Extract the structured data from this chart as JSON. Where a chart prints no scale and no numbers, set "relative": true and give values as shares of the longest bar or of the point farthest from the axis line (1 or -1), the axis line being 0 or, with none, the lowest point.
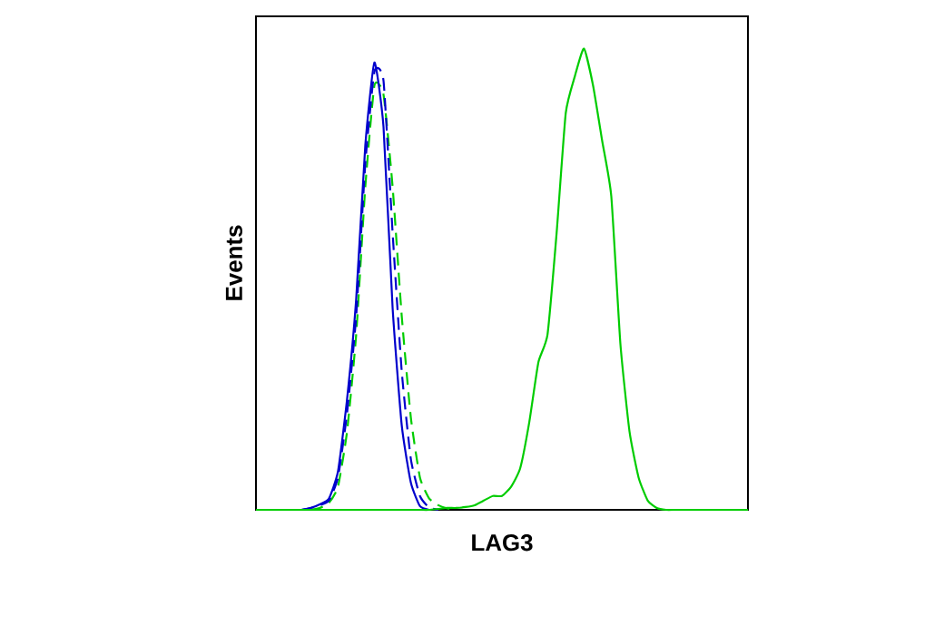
{
  "chart_data": {
    "type": "line",
    "relative": true,
    "xlabel": "LAG3",
    "ylabel": "Events",
    "marker": "none",
    "categories": [
      null,
      null,
      null,
      null,
      null,
      null,
      null,
      null,
      null,
      null,
      null,
      null,
      null,
      null,
      null,
      null,
      null,
      null,
      null,
      null,
      null,
      null,
      null,
      null,
      null,
      null,
      null,
      null,
      null,
      null,
      null,
      null,
      null,
      null,
      null,
      null,
      null,
      null,
      null,
      null,
      null,
      null,
      null,
      null,
      null,
      null,
      null,
      null,
      null,
      null,
      null,
      null,
      null,
      null,
      null
    ],
    "series": [
      {
        "color": "#00cc00",
        "line_style": "dashed",
        "values": [
          null,
          null,
          null,
          null,
          null,
          null,
          0,
          0.004,
          0.015,
          0.05,
          0.17,
          0.38,
          0.7,
          0.92,
          0.9,
          0.7,
          0.42,
          0.2,
          0.07,
          0.025,
          0.01,
          0.003,
          0,
          null,
          null,
          null,
          null,
          null,
          null,
          null,
          null,
          null,
          null,
          null,
          null,
          null,
          null,
          null,
          null,
          null,
          null,
          null,
          null,
          null,
          null,
          null,
          null,
          null,
          null,
          null,
          null,
          null,
          null,
          null,
          null
        ]
      },
      {
        "color": "#0000cc",
        "line_style": "dashed",
        "values": [
          null,
          null,
          null,
          null,
          null,
          0,
          0.004,
          0.01,
          0.02,
          0.07,
          0.21,
          0.42,
          0.75,
          0.95,
          0.93,
          0.6,
          0.3,
          0.11,
          0.03,
          0.005,
          0,
          null,
          null,
          null,
          null,
          null,
          null,
          null,
          null,
          null,
          null,
          null,
          null,
          null,
          null,
          null,
          null,
          null,
          null,
          null,
          null,
          null,
          null,
          null,
          null,
          null,
          null,
          null,
          null,
          null,
          null,
          null,
          null,
          null,
          null
        ]
      },
      {
        "color": "#0000cc",
        "line_style": "solid",
        "values": [
          null,
          null,
          null,
          null,
          null,
          0,
          0.004,
          0.012,
          0.024,
          0.083,
          0.24,
          0.457,
          0.79,
          0.97,
          0.83,
          0.437,
          0.183,
          0.059,
          0.008,
          0,
          null,
          null,
          null,
          null,
          null,
          null,
          null,
          null,
          null,
          null,
          null,
          null,
          null,
          null,
          null,
          null,
          null,
          null,
          null,
          null,
          null,
          null,
          null,
          null,
          null,
          null,
          null,
          null,
          null,
          null,
          null,
          null,
          null,
          null,
          null
        ]
      },
      {
        "color": "#00cc00",
        "line_style": "solid",
        "values": [
          0,
          0,
          0,
          0,
          0,
          0,
          0,
          0,
          0,
          0,
          0,
          0,
          0,
          0,
          0,
          0,
          0,
          0,
          0,
          0,
          0.002,
          0.004,
          0.004,
          0.006,
          0.01,
          0.02,
          0.03,
          0.03,
          0.05,
          0.09,
          0.19,
          0.32,
          0.38,
          0.6,
          0.86,
          0.94,
          1.0,
          0.92,
          0.8,
          0.68,
          0.36,
          0.17,
          0.07,
          0.02,
          0.004,
          0,
          0,
          0,
          0,
          0,
          0,
          0,
          0,
          0,
          0
        ]
      }
    ]
  }
}
